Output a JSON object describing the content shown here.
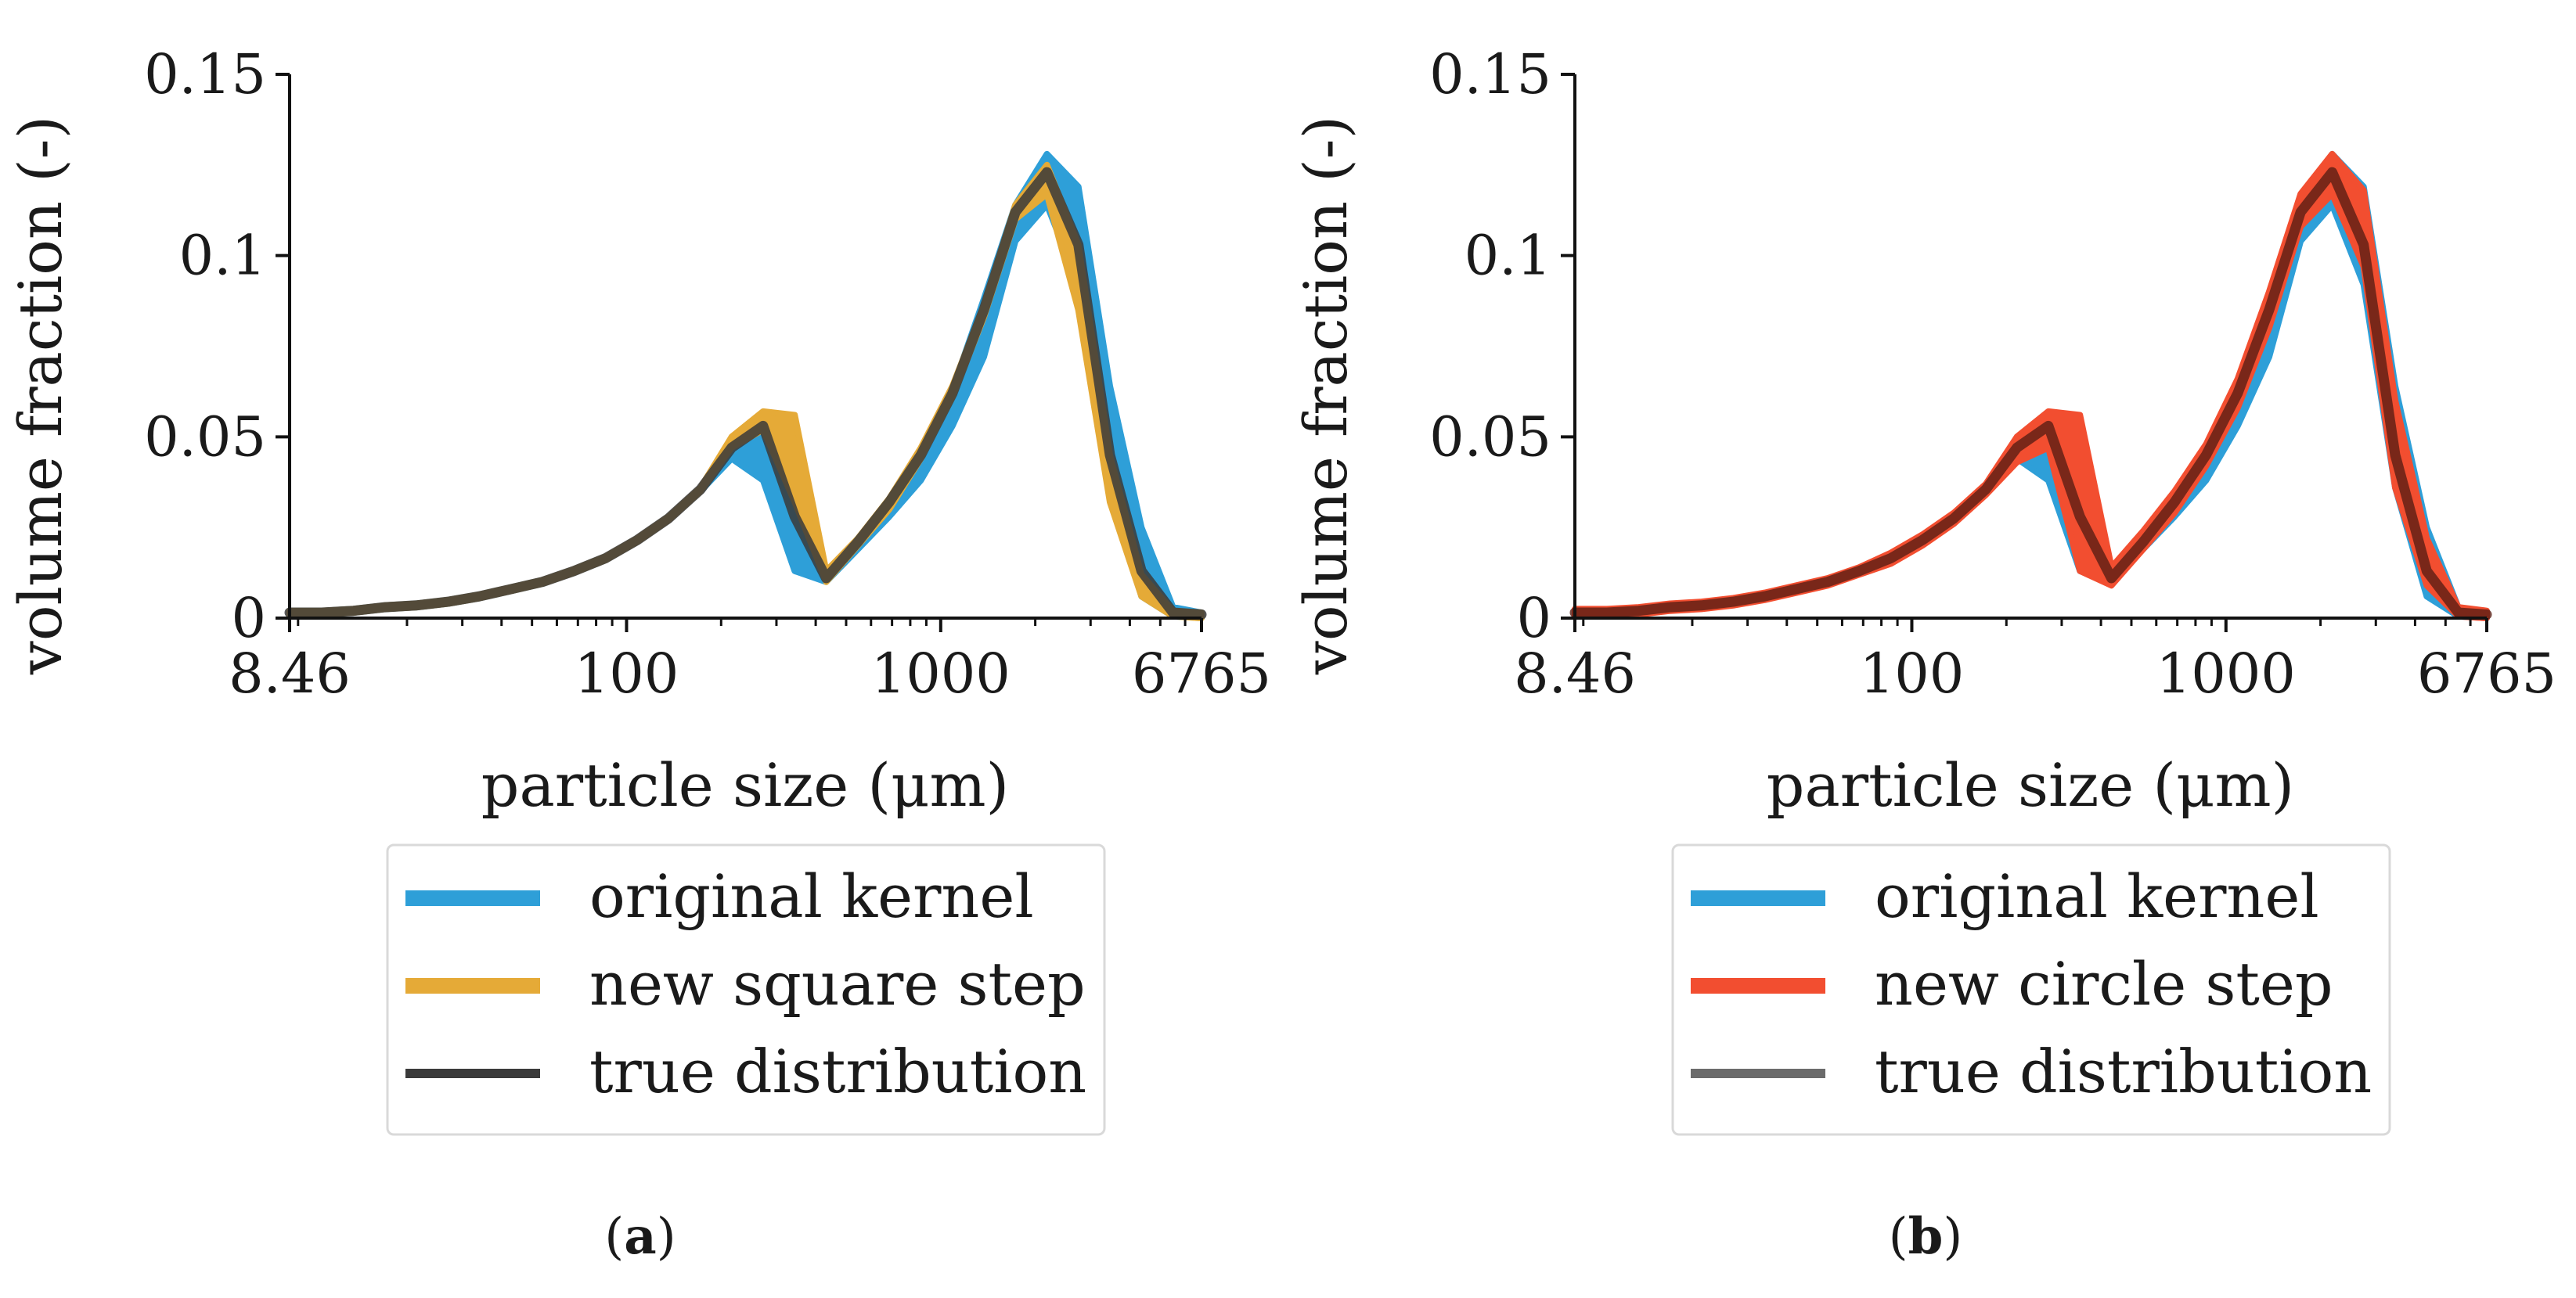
{
  "colors": {
    "original_kernel": "#2e9fd8",
    "square_step": "#e5aa37",
    "circle_step": "#f24e30",
    "true_dist_a": "#3a3a3a",
    "true_dist_b": "#6b6b6b",
    "true_dist_b_line": "#5a1e14",
    "axis": "#111111"
  },
  "chart_data": [
    {
      "type": "line",
      "panel": "a",
      "caption": "(a)",
      "caption_letter": "a",
      "xlabel": "particle size (μm)",
      "ylabel": "volume fraction (-)",
      "xscale": "log",
      "xlim": [
        8.46,
        6765
      ],
      "ylim": [
        0,
        0.15
      ],
      "xticks": [
        8.46,
        100,
        1000,
        6765
      ],
      "xtick_labels": [
        "8.46",
        "100",
        "1000",
        "6765"
      ],
      "yticks": [
        0,
        0.05,
        0.1,
        0.15
      ],
      "ytick_labels": [
        "0",
        "0.05",
        "0.1",
        "0.15"
      ],
      "legend_position": "below",
      "x": [
        8.46,
        10.7,
        13.5,
        17,
        21.4,
        27,
        34,
        42.9,
        54,
        68,
        85.7,
        108,
        136,
        172,
        216,
        272,
        343,
        432,
        545,
        686,
        865,
        1090,
        1372,
        1729,
        2178,
        2744,
        3458,
        4357,
        5489,
        6765
      ],
      "series": [
        {
          "name": "original kernel",
          "role": "band",
          "lower": [
            0.001,
            0.001,
            0.0015,
            0.0025,
            0.003,
            0.004,
            0.0055,
            0.0075,
            0.0095,
            0.0125,
            0.016,
            0.021,
            0.027,
            0.035,
            0.044,
            0.038,
            0.013,
            0.01,
            0.019,
            0.028,
            0.038,
            0.053,
            0.072,
            0.104,
            0.114,
            0.092,
            0.036,
            0.006,
            0.0005,
            0.0
          ],
          "upper": [
            0.002,
            0.002,
            0.0025,
            0.0035,
            0.004,
            0.005,
            0.0065,
            0.0085,
            0.0105,
            0.0135,
            0.017,
            0.022,
            0.028,
            0.036,
            0.049,
            0.054,
            0.051,
            0.012,
            0.022,
            0.032,
            0.046,
            0.063,
            0.088,
            0.114,
            0.128,
            0.119,
            0.064,
            0.025,
            0.003,
            0.0015
          ]
        },
        {
          "name": "new square step",
          "role": "band",
          "lower": [
            0.001,
            0.001,
            0.0015,
            0.0025,
            0.003,
            0.004,
            0.0055,
            0.0075,
            0.0095,
            0.0125,
            0.016,
            0.021,
            0.027,
            0.035,
            0.047,
            0.052,
            0.032,
            0.01,
            0.02,
            0.03,
            0.044,
            0.061,
            0.083,
            0.11,
            0.117,
            0.085,
            0.032,
            0.006,
            0.0005,
            0.0
          ],
          "upper": [
            0.002,
            0.002,
            0.0025,
            0.0035,
            0.004,
            0.005,
            0.0065,
            0.0085,
            0.0105,
            0.0135,
            0.017,
            0.022,
            0.028,
            0.036,
            0.05,
            0.057,
            0.056,
            0.013,
            0.022,
            0.033,
            0.047,
            0.064,
            0.086,
            0.114,
            0.125,
            0.103,
            0.045,
            0.012,
            0.002,
            0.0015
          ]
        },
        {
          "name": "true distribution",
          "role": "line",
          "values": [
            0.0015,
            0.0015,
            0.002,
            0.003,
            0.0035,
            0.0045,
            0.006,
            0.008,
            0.01,
            0.013,
            0.0165,
            0.0215,
            0.0275,
            0.0355,
            0.047,
            0.053,
            0.028,
            0.011,
            0.021,
            0.032,
            0.045,
            0.062,
            0.085,
            0.112,
            0.123,
            0.103,
            0.045,
            0.013,
            0.0015,
            0.001
          ]
        }
      ],
      "legend": [
        "original kernel",
        "new square step",
        "true distribution"
      ]
    },
    {
      "type": "line",
      "panel": "b",
      "caption": "(b)",
      "caption_letter": "b",
      "xlabel": "particle size (μm)",
      "ylabel": "volume fraction (-)",
      "xscale": "log",
      "xlim": [
        8.46,
        6765
      ],
      "ylim": [
        0,
        0.15
      ],
      "xticks": [
        8.46,
        100,
        1000,
        6765
      ],
      "xtick_labels": [
        "8.46",
        "100",
        "1000",
        "6765"
      ],
      "yticks": [
        0,
        0.05,
        0.1,
        0.15
      ],
      "ytick_labels": [
        "0",
        "0.05",
        "0.1",
        "0.15"
      ],
      "legend_position": "below",
      "x": [
        8.46,
        10.7,
        13.5,
        17,
        21.4,
        27,
        34,
        42.9,
        54,
        68,
        85.7,
        108,
        136,
        172,
        216,
        272,
        343,
        432,
        545,
        686,
        865,
        1090,
        1372,
        1729,
        2178,
        2744,
        3458,
        4357,
        5489,
        6765
      ],
      "series": [
        {
          "name": "original kernel",
          "role": "band",
          "lower": [
            0.001,
            0.001,
            0.0015,
            0.0025,
            0.003,
            0.004,
            0.0055,
            0.0075,
            0.0095,
            0.0125,
            0.016,
            0.021,
            0.027,
            0.035,
            0.044,
            0.038,
            0.013,
            0.01,
            0.019,
            0.028,
            0.038,
            0.053,
            0.072,
            0.104,
            0.114,
            0.092,
            0.036,
            0.006,
            0.0005,
            0.0
          ],
          "upper": [
            0.002,
            0.002,
            0.0025,
            0.0035,
            0.004,
            0.005,
            0.0065,
            0.0085,
            0.0105,
            0.0135,
            0.017,
            0.022,
            0.028,
            0.036,
            0.049,
            0.054,
            0.051,
            0.012,
            0.022,
            0.032,
            0.046,
            0.063,
            0.088,
            0.114,
            0.128,
            0.119,
            0.064,
            0.025,
            0.003,
            0.0015
          ]
        },
        {
          "name": "new circle step",
          "role": "band",
          "lower": [
            0.0005,
            0.0005,
            0.001,
            0.002,
            0.0025,
            0.0035,
            0.005,
            0.007,
            0.009,
            0.012,
            0.015,
            0.02,
            0.026,
            0.034,
            0.043,
            0.047,
            0.013,
            0.009,
            0.019,
            0.029,
            0.042,
            0.058,
            0.08,
            0.108,
            0.117,
            0.097,
            0.036,
            0.009,
            0.0005,
            0.0
          ],
          "upper": [
            0.0025,
            0.0025,
            0.003,
            0.004,
            0.0045,
            0.0055,
            0.007,
            0.009,
            0.011,
            0.014,
            0.018,
            0.023,
            0.029,
            0.037,
            0.05,
            0.057,
            0.056,
            0.014,
            0.024,
            0.035,
            0.048,
            0.066,
            0.09,
            0.117,
            0.128,
            0.118,
            0.06,
            0.022,
            0.003,
            0.002
          ]
        },
        {
          "name": "true distribution",
          "role": "line",
          "values": [
            0.0015,
            0.0015,
            0.002,
            0.003,
            0.0035,
            0.0045,
            0.006,
            0.008,
            0.01,
            0.013,
            0.0165,
            0.0215,
            0.0275,
            0.0355,
            0.047,
            0.053,
            0.028,
            0.011,
            0.021,
            0.032,
            0.045,
            0.062,
            0.085,
            0.112,
            0.123,
            0.103,
            0.045,
            0.013,
            0.0015,
            0.001
          ]
        }
      ],
      "legend": [
        "original kernel",
        "new circle step",
        "true distribution"
      ]
    }
  ]
}
